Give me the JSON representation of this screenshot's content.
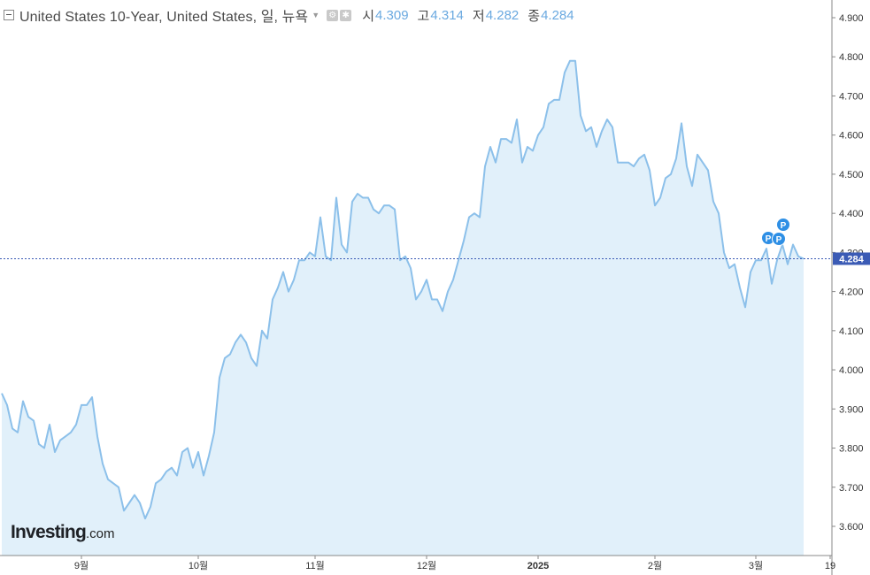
{
  "header": {
    "title": "United States 10-Year, United States, 일, 뉴욕",
    "open_label": "시",
    "open_value": "4.309",
    "high_label": "고",
    "high_value": "4.314",
    "low_label": "저",
    "low_value": "4.282",
    "close_label": "종",
    "close_value": "4.284"
  },
  "logo": {
    "main": "Investing",
    "suffix": ".com"
  },
  "chart_data": {
    "type": "area",
    "title": "United States 10-Year, United States, 일, 뉴욕",
    "y_ticks": [
      "4.900",
      "4.800",
      "4.700",
      "4.600",
      "4.500",
      "4.400",
      "4.300",
      "4.200",
      "4.100",
      "4.000",
      "3.900",
      "3.800",
      "3.700",
      "3.600"
    ],
    "x_ticks": [
      "9월",
      "10월",
      "11월",
      "12월",
      "2025",
      "2월",
      "3월",
      "19"
    ],
    "ylim": [
      3.52,
      4.93
    ],
    "last_value": 4.284,
    "last_value_label": "4.284",
    "markers": [
      {
        "label": "P",
        "x_index": 207
      },
      {
        "label": "P",
        "x_index": 209
      },
      {
        "label": "P",
        "x_index": 210
      }
    ],
    "series": [
      {
        "values": [
          3.94,
          3.91,
          3.85,
          3.84,
          3.92,
          3.88,
          3.87,
          3.81,
          3.8,
          3.86,
          3.79,
          3.82,
          3.83,
          3.84,
          3.86,
          3.91,
          3.91,
          3.93,
          3.83,
          3.76,
          3.72,
          3.71,
          3.7,
          3.64,
          3.66,
          3.68,
          3.66,
          3.62,
          3.65,
          3.71,
          3.72,
          3.74,
          3.75,
          3.73,
          3.79,
          3.8,
          3.75,
          3.79,
          3.73,
          3.78,
          3.84,
          3.98,
          4.03,
          4.04,
          4.07,
          4.09,
          4.07,
          4.03,
          4.01,
          4.1,
          4.08,
          4.18,
          4.21,
          4.25,
          4.2,
          4.23,
          4.28,
          4.28,
          4.3,
          4.29,
          4.39,
          4.29,
          4.28,
          4.44,
          4.32,
          4.3,
          4.43,
          4.45,
          4.44,
          4.44,
          4.41,
          4.4,
          4.42,
          4.42,
          4.41,
          4.28,
          4.29,
          4.26,
          4.18,
          4.2,
          4.23,
          4.18,
          4.18,
          4.15,
          4.2,
          4.23,
          4.28,
          4.33,
          4.39,
          4.4,
          4.39,
          4.52,
          4.57,
          4.53,
          4.59,
          4.59,
          4.58,
          4.64,
          4.53,
          4.57,
          4.56,
          4.6,
          4.62,
          4.68,
          4.69,
          4.69,
          4.76,
          4.79,
          4.79,
          4.65,
          4.61,
          4.62,
          4.57,
          4.61,
          4.64,
          4.62,
          4.53,
          4.53,
          4.53,
          4.52,
          4.54,
          4.55,
          4.51,
          4.42,
          4.44,
          4.49,
          4.5,
          4.54,
          4.63,
          4.52,
          4.47,
          4.55,
          4.53,
          4.51,
          4.43,
          4.4,
          4.3,
          4.26,
          4.27,
          4.21,
          4.16,
          4.25,
          4.28,
          4.28,
          4.31,
          4.22,
          4.28,
          4.32,
          4.27,
          4.32,
          4.29,
          4.284
        ]
      }
    ]
  }
}
